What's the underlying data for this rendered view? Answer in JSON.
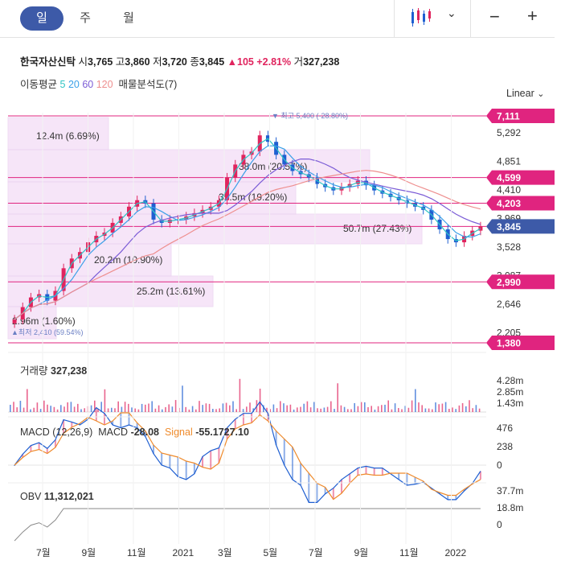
{
  "tabs": [
    {
      "label": "일",
      "active": true
    },
    {
      "label": "주",
      "active": false
    },
    {
      "label": "월",
      "active": false
    }
  ],
  "toolbar": {
    "chart_type_icon": "candlestick-icon",
    "zoom_out_icon": "minus-icon",
    "zoom_in_icon": "plus-icon"
  },
  "quote": {
    "name": "한국자산신탁",
    "open_label": "시",
    "open": "3,765",
    "high_label": "고",
    "high": "3,860",
    "low_label": "저",
    "low": "3,720",
    "close_label": "종",
    "close": "3,845",
    "change_arrow": "▲",
    "change": "105",
    "change_pct": "+2.81%",
    "volume_label": "거",
    "volume": "327,238"
  },
  "indicators": {
    "ma_label": "이동평균",
    "ma_periods": [
      {
        "label": "5",
        "color": "#2ec4c4"
      },
      {
        "label": "20",
        "color": "#3aa0e8"
      },
      {
        "label": "60",
        "color": "#7b5cd6"
      },
      {
        "label": "120",
        "color": "#ee8f8f"
      }
    ],
    "volume_profile_label": "매물분석도(7)"
  },
  "scale": {
    "label": "Linear"
  },
  "colors": {
    "up": "#e0245e",
    "down": "#1f5fd1",
    "level": "#e0247f",
    "current": "#3d5aa8",
    "zone": "#f3ddf6"
  },
  "chart_data": {
    "type": "candlestick",
    "x_tick_labels": [
      "7월",
      "9월",
      "11월",
      "2021",
      "3월",
      "5월",
      "7월",
      "9월",
      "11월",
      "2022"
    ],
    "price_axis": {
      "scale": "linear",
      "ticks": [
        "5,292",
        "4,851",
        "4,410",
        "3,969",
        "3,528",
        "3,087",
        "2,646",
        "2,205"
      ],
      "ylim": [
        2000,
        5600
      ]
    },
    "price_levels": [
      {
        "label": "7,111",
        "value": 7111
      },
      {
        "label": "4,599",
        "value": 4599
      },
      {
        "label": "4,203",
        "value": 4203
      },
      {
        "label": "3,845",
        "value": 3845,
        "current": true
      },
      {
        "label": "2,990",
        "value": 2990
      },
      {
        "label": "1,380",
        "value": 1380
      }
    ],
    "volume_profile": [
      {
        "label": "12.4m (6.69%)"
      },
      {
        "label": "38.0m (20.57%)"
      },
      {
        "label": "35.5m (19.20%)"
      },
      {
        "label": "50.7m (27.43%)"
      },
      {
        "label": "20.2m (10.90%)"
      },
      {
        "label": "25.2m (13.61%)"
      },
      {
        "label": "2.96m (1.60%)"
      }
    ],
    "high_marker": {
      "label": "최고",
      "value": "5,400",
      "pct": "(-28.80%)"
    },
    "low_marker": {
      "label": "최저",
      "value": "2,410",
      "pct": "(59.54%)"
    },
    "close_series": [
      2410,
      2600,
      2750,
      2800,
      2700,
      2850,
      3200,
      3350,
      3450,
      3600,
      3700,
      3750,
      3900,
      4000,
      4150,
      4250,
      4200,
      3950,
      3900,
      3950,
      3950,
      4000,
      4050,
      4100,
      4150,
      4250,
      4600,
      4800,
      4950,
      5000,
      5250,
      5150,
      4950,
      4800,
      4700,
      4650,
      4600,
      4500,
      4450,
      4400,
      4450,
      4500,
      4550,
      4480,
      4400,
      4350,
      4300,
      4250,
      4200,
      4150,
      4100,
      3950,
      3800,
      3650,
      3600,
      3700,
      3780,
      3845
    ],
    "volume": {
      "label": "거래량",
      "value": "327,238",
      "ticks": [
        "4.28m",
        "2.85m",
        "1.43m"
      ]
    },
    "macd": {
      "label": "MACD (12,26,9)",
      "macd_label": "MACD",
      "macd_value": "-28.08",
      "signal_label": "Signal",
      "signal_value": "-55.17",
      "hist_value": "27.10",
      "ticks": [
        "476",
        "238",
        "0"
      ]
    },
    "obv": {
      "label": "OBV",
      "value": "11,312,021",
      "ticks": [
        "37.7m",
        "18.8m",
        "0"
      ]
    }
  }
}
